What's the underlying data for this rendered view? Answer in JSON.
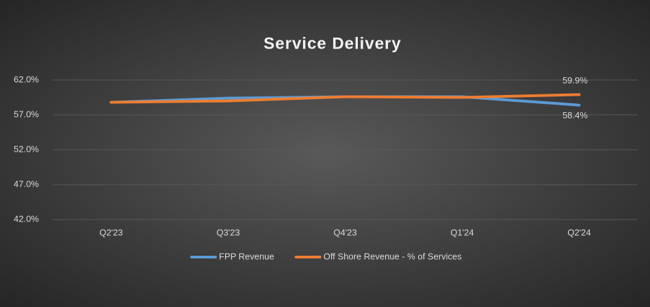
{
  "chart_data": {
    "type": "line",
    "title": "Service Delivery",
    "categories": [
      "Q2'23",
      "Q3'23",
      "Q4'23",
      "Q1'24",
      "Q2'24"
    ],
    "series": [
      {
        "name": "FPP Revenue",
        "color": "#5b9bd5",
        "values": [
          58.8,
          59.4,
          59.6,
          59.6,
          58.4
        ],
        "value_labels": [
          null,
          null,
          null,
          null,
          "58.4%"
        ]
      },
      {
        "name": "Off Shore Revenue - % of Services",
        "color": "#ed7d31",
        "values": [
          58.8,
          59.0,
          59.6,
          59.5,
          59.9
        ],
        "value_labels": [
          null,
          null,
          null,
          null,
          "59.9%"
        ]
      }
    ],
    "ylim": [
      42,
      62
    ],
    "yticks": [
      {
        "value": 42,
        "label": "42.0%"
      },
      {
        "value": 47,
        "label": "47.0%"
      },
      {
        "value": 52,
        "label": "52.0%"
      },
      {
        "value": 57,
        "label": "57.0%"
      },
      {
        "value": 62,
        "label": "62.0%"
      }
    ],
    "grid": true,
    "legend": "bottom"
  }
}
